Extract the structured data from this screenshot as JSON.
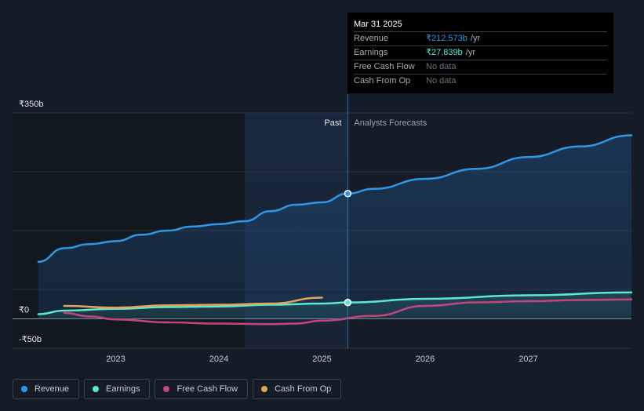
{
  "chart_data": {
    "type": "line",
    "x_ticks": [
      "2023",
      "2024",
      "2025",
      "2026",
      "2027"
    ],
    "y_ticks": [
      {
        "value": 350,
        "label": "₹350b"
      },
      {
        "value": 0,
        "label": "₹0"
      },
      {
        "value": -50,
        "label": "-₹50b"
      }
    ],
    "ylim": [
      -50,
      350
    ],
    "xlim": [
      2022.0,
      2028.0
    ],
    "divider_labels": {
      "past": "Past",
      "forecast": "Analysts Forecasts"
    },
    "divider_x": 2025.25,
    "shaded_past_start": 2024.25,
    "series": [
      {
        "name": "Revenue",
        "color": "#2f97e6",
        "fill": true,
        "points": [
          [
            2022.25,
            97
          ],
          [
            2022.5,
            120
          ],
          [
            2022.75,
            127
          ],
          [
            2023.0,
            132
          ],
          [
            2023.25,
            143
          ],
          [
            2023.5,
            150
          ],
          [
            2023.75,
            157
          ],
          [
            2024.0,
            161
          ],
          [
            2024.25,
            166
          ],
          [
            2024.5,
            183
          ],
          [
            2024.75,
            194
          ],
          [
            2025.0,
            198
          ],
          [
            2025.25,
            213
          ],
          [
            2025.5,
            221
          ],
          [
            2026.0,
            238
          ],
          [
            2026.5,
            255
          ],
          [
            2027.0,
            275
          ],
          [
            2027.5,
            293
          ],
          [
            2028.0,
            312
          ]
        ]
      },
      {
        "name": "Earnings",
        "color": "#5ce8cf",
        "fill": true,
        "points": [
          [
            2022.25,
            8
          ],
          [
            2022.5,
            14
          ],
          [
            2023.0,
            17
          ],
          [
            2023.5,
            20
          ],
          [
            2024.0,
            21
          ],
          [
            2024.5,
            24
          ],
          [
            2025.0,
            26
          ],
          [
            2025.25,
            27.8
          ],
          [
            2026.0,
            34
          ],
          [
            2027.0,
            40
          ],
          [
            2028.0,
            45
          ]
        ]
      },
      {
        "name": "Free Cash Flow",
        "color": "#c2467c",
        "fill": false,
        "points": [
          [
            2022.5,
            10
          ],
          [
            2022.75,
            4
          ],
          [
            2023.0,
            -1
          ],
          [
            2023.5,
            -6
          ],
          [
            2024.0,
            -8
          ],
          [
            2024.5,
            -9
          ],
          [
            2024.75,
            -8
          ],
          [
            2025.0,
            -3
          ],
          [
            2025.5,
            5
          ],
          [
            2026.0,
            22
          ],
          [
            2026.5,
            28
          ],
          [
            2027.0,
            30
          ],
          [
            2027.5,
            32
          ],
          [
            2028.0,
            33
          ]
        ]
      },
      {
        "name": "Cash From Op",
        "color": "#e0a55a",
        "fill": false,
        "points": [
          [
            2022.5,
            22
          ],
          [
            2023.0,
            19
          ],
          [
            2023.5,
            23
          ],
          [
            2024.0,
            24
          ],
          [
            2024.5,
            26
          ],
          [
            2025.0,
            36
          ]
        ]
      }
    ],
    "highlight_x": 2025.25
  },
  "tooltip": {
    "date": "Mar 31 2025",
    "rows": [
      {
        "label": "Revenue",
        "value": "₹212.573b",
        "unit": "/yr",
        "cls": "c-rev"
      },
      {
        "label": "Earnings",
        "value": "₹27.839b",
        "unit": "/yr",
        "cls": "c-earn"
      },
      {
        "label": "Free Cash Flow",
        "value": "No data",
        "unit": "",
        "cls": "c-nodata"
      },
      {
        "label": "Cash From Op",
        "value": "No data",
        "unit": "",
        "cls": "c-nodata"
      }
    ]
  },
  "legend": [
    {
      "label": "Revenue",
      "color": "#2f97e6"
    },
    {
      "label": "Earnings",
      "color": "#5ce8cf"
    },
    {
      "label": "Free Cash Flow",
      "color": "#c2467c"
    },
    {
      "label": "Cash From Op",
      "color": "#e0a55a"
    }
  ]
}
